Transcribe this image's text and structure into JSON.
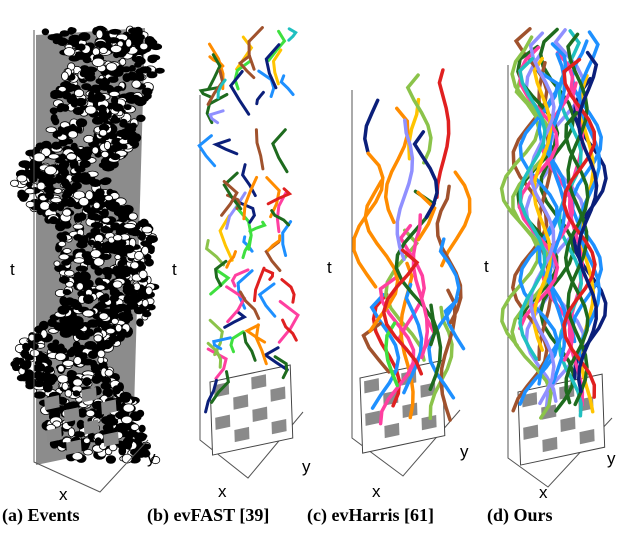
{
  "panels": [
    {
      "caption": "(a) Events",
      "axis_t": "t",
      "axis_x": "x",
      "axis_y": "y"
    },
    {
      "caption": "(b) evFAST [39]",
      "axis_t": "t",
      "axis_x": "x",
      "axis_y": "y"
    },
    {
      "caption": "(c) evHarris [61]",
      "axis_t": "t",
      "axis_x": "x",
      "axis_y": "y"
    },
    {
      "caption": "(d) Ours",
      "axis_t": "t",
      "axis_x": "x",
      "axis_y": "y"
    }
  ],
  "colors": {
    "event_box": "#8c8c8c",
    "events": "#000000",
    "track_palette": [
      "#0b1f7a",
      "#1e6b1e",
      "#ff3fa0",
      "#ffc400",
      "#3fe03f",
      "#e02020",
      "#1e90ff",
      "#8bc34a",
      "#a0522d",
      "#9090ff",
      "#20c0c0",
      "#ff8c00"
    ]
  }
}
